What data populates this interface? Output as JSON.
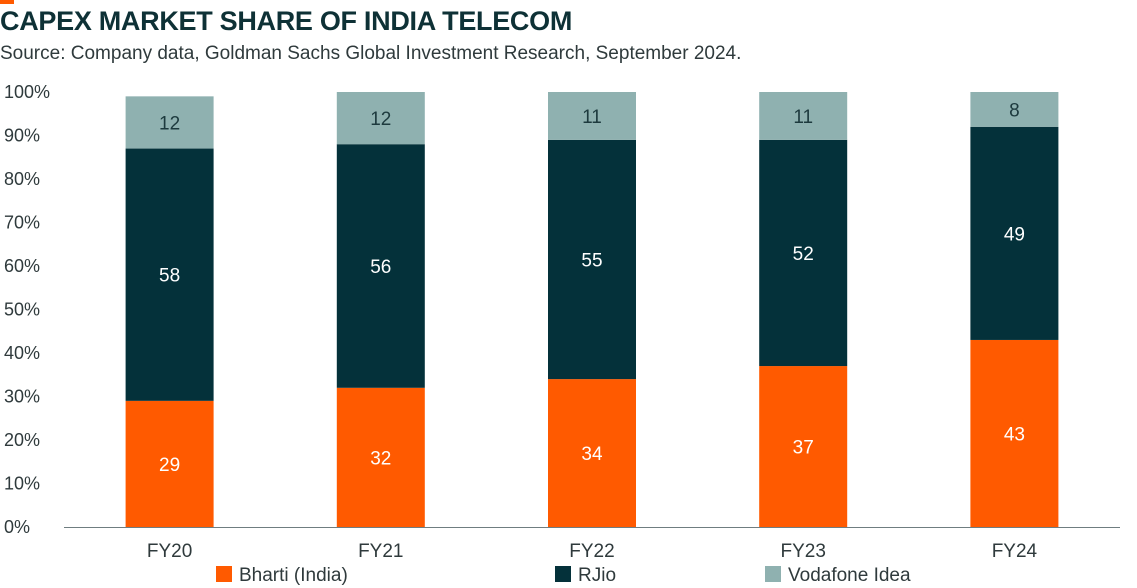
{
  "title": "CAPEX MARKET SHARE OF INDIA TELECOM",
  "subtitle": "Source: Company data, Goldman Sachs Global Investment Research, September 2024.",
  "colors": {
    "accent": "#ff5a00",
    "title": "#0e3136"
  },
  "chart_data": {
    "type": "bar",
    "stacked": true,
    "categories": [
      "FY20",
      "FY21",
      "FY22",
      "FY23",
      "FY24"
    ],
    "series": [
      {
        "name": "Bharti (India)",
        "values": [
          29,
          32,
          34,
          37,
          43
        ],
        "color": "#ff5a00",
        "label_color": "#ffffff"
      },
      {
        "name": "RJio",
        "values": [
          58,
          56,
          55,
          52,
          49
        ],
        "color": "#04313a",
        "label_color": "#ffffff"
      },
      {
        "name": "Vodafone Idea",
        "values": [
          12,
          12,
          11,
          11,
          8
        ],
        "color": "#8fb1b0",
        "label_color": "#1d3a3e"
      }
    ],
    "ylim": [
      0,
      100
    ],
    "yticks": [
      "0%",
      "10%",
      "20%",
      "30%",
      "40%",
      "50%",
      "60%",
      "70%",
      "80%",
      "90%",
      "100%"
    ],
    "xlabel": "",
    "ylabel": "",
    "grid": false,
    "legend_position": "bottom"
  }
}
